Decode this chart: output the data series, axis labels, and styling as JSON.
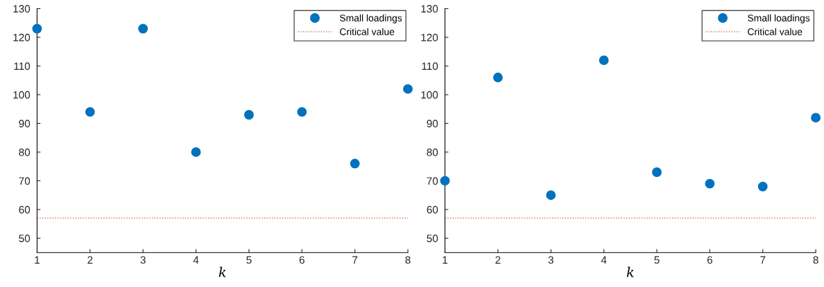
{
  "chart_data": [
    {
      "type": "scatter",
      "xlabel": "k",
      "x": [
        1,
        2,
        3,
        4,
        5,
        6,
        7,
        8
      ],
      "series": [
        {
          "name": "Small loadings",
          "color": "#0072bd",
          "values": [
            123,
            94,
            123,
            80,
            93,
            94,
            76,
            102
          ]
        }
      ],
      "ref_lines": [
        {
          "axis": "y",
          "value": 57,
          "label": "Critical value",
          "color": "#d95319",
          "line_style": "dotted"
        }
      ],
      "xlim": [
        1,
        8
      ],
      "xticks": [
        1,
        2,
        3,
        4,
        5,
        6,
        7,
        8
      ],
      "ylim": [
        45,
        130
      ],
      "yticks": [
        50,
        60,
        70,
        80,
        90,
        100,
        110,
        120,
        130
      ],
      "marker": "circle",
      "legend": "top right",
      "grid": false
    },
    {
      "type": "scatter",
      "xlabel": "k",
      "x": [
        1,
        2,
        3,
        4,
        5,
        6,
        7,
        8
      ],
      "series": [
        {
          "name": "Small loadings",
          "color": "#0072bd",
          "values": [
            70,
            106,
            65,
            112,
            73,
            69,
            68,
            92
          ]
        }
      ],
      "ref_lines": [
        {
          "axis": "y",
          "value": 57,
          "label": "Critical value",
          "color": "#d95319",
          "line_style": "dotted"
        }
      ],
      "xlim": [
        1,
        8
      ],
      "xticks": [
        1,
        2,
        3,
        4,
        5,
        6,
        7,
        8
      ],
      "ylim": [
        45,
        130
      ],
      "yticks": [
        50,
        60,
        70,
        80,
        90,
        100,
        110,
        120,
        130
      ],
      "marker": "circle",
      "legend": "top right",
      "grid": false
    }
  ]
}
